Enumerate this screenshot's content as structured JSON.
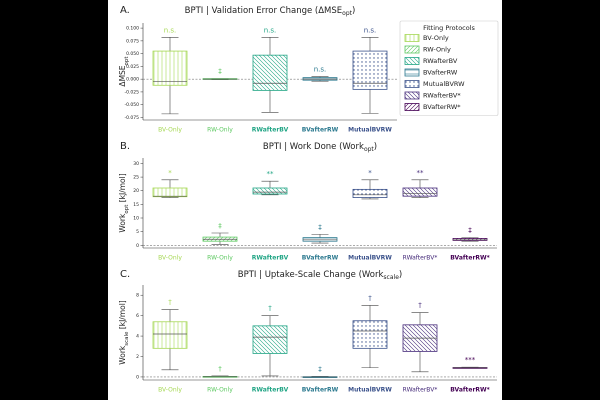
{
  "chart_data": [
    {
      "type": "box",
      "panel_label": "A.",
      "title": [
        "BPTI | Validation Error Change (ΔMSE",
        "opt",
        ")"
      ],
      "ylabel": [
        "ΔMSE",
        "opt"
      ],
      "categories": [
        "BV-Only",
        "RW-Only",
        "RWafterBV",
        "BVafterRW",
        "MutualBVRW"
      ],
      "colors": [
        "#a6d854",
        "#5ec962",
        "#21a585",
        "#2a788e",
        "#3b528b"
      ],
      "hatches": [
        "|",
        "/",
        "\\",
        "-",
        "o"
      ],
      "bold_labels": [
        false,
        false,
        true,
        true,
        true
      ],
      "annotations": [
        "n.s.",
        "‡",
        "n.s.",
        "n.s.",
        "n.s."
      ],
      "boxes": [
        {
          "low": -0.068,
          "q1": -0.012,
          "median": -0.005,
          "q3": 0.055,
          "high": 0.082
        },
        {
          "low": -0.001,
          "q1": 0,
          "median": 0,
          "q3": 0.001,
          "high": 0.001
        },
        {
          "low": -0.065,
          "q1": -0.022,
          "median": -0.008,
          "q3": 0.047,
          "high": 0.082
        },
        {
          "low": -0.004,
          "q1": -0.002,
          "median": 0,
          "q3": 0.003,
          "high": 0.005
        },
        {
          "low": -0.067,
          "q1": -0.02,
          "median": -0.008,
          "q3": 0.055,
          "high": 0.082
        }
      ],
      "hline": 0,
      "ylim": [
        -0.08,
        0.11
      ],
      "yticks": [
        -0.075,
        {
          "value": -0.05,
          "label": "-0.050"
        },
        -0.025,
        {
          "value": 0,
          "label": "0.000"
        },
        0.025,
        {
          "value": 0.05,
          "label": "0.050"
        },
        0.075,
        {
          "value": 0.1,
          "label": "0.100"
        }
      ],
      "legend": {
        "title": "Fitting Protocols",
        "position": "upper right",
        "names": [
          "BV-Only",
          "RW-Only",
          "RWafterBV",
          "BVafterRW",
          "MutualBVRW",
          "RWafterBV*",
          "BVafterRW*"
        ],
        "colors": [
          "#a6d854",
          "#5ec962",
          "#21a585",
          "#2a788e",
          "#3b528b",
          "#472d7b",
          "#440154"
        ],
        "hatches": [
          "|",
          "/",
          "\\",
          "-",
          "o",
          "\\",
          "/"
        ]
      }
    },
    {
      "type": "box",
      "panel_label": "B.",
      "title": [
        "BPTI | Work Done (Work",
        "opt",
        ")"
      ],
      "ylabel": [
        "Work",
        "opt",
        " [kJ/mol]"
      ],
      "categories": [
        "BV-Only",
        "RW-Only",
        "RWafterBV",
        "BVafterRW",
        "MutualBVRW",
        "RWafterBV*",
        "BVafterRW*"
      ],
      "colors": [
        "#a6d854",
        "#5ec962",
        "#21a585",
        "#2a788e",
        "#3b528b",
        "#472d7b",
        "#440154"
      ],
      "hatches": [
        "|",
        "/",
        "\\",
        "-",
        "o",
        "\\",
        "/"
      ],
      "bold_labels": [
        false,
        false,
        true,
        true,
        true,
        false,
        true
      ],
      "annotations": [
        "*",
        "‡",
        "**",
        "‡",
        "*",
        "**",
        "‡"
      ],
      "boxes": [
        {
          "low": 17.5,
          "q1": 17.8,
          "median": 18,
          "q3": 21,
          "high": 24
        },
        {
          "low": 0.3,
          "q1": 1.5,
          "median": 2.2,
          "q3": 3,
          "high": 4.5
        },
        {
          "low": 18.5,
          "q1": 18.8,
          "median": 19.5,
          "q3": 21,
          "high": 23.5
        },
        {
          "low": 0.8,
          "q1": 1.5,
          "median": 2,
          "q3": 2.8,
          "high": 4
        },
        {
          "low": 17,
          "q1": 17.5,
          "median": 18.5,
          "q3": 20.5,
          "high": 24
        },
        {
          "low": 17.5,
          "q1": 18,
          "median": 19,
          "q3": 21,
          "high": 24
        },
        {
          "low": 1.5,
          "q1": 1.8,
          "median": 2,
          "q3": 2.5,
          "high": 2.8
        }
      ],
      "hline": 0,
      "ylim": [
        -1,
        32
      ],
      "yticks": [
        0,
        5,
        10,
        15,
        20,
        25,
        30
      ]
    },
    {
      "type": "box",
      "panel_label": "C.",
      "title": [
        "BPTI | Uptake-Scale Change (Work",
        "scale",
        ")"
      ],
      "ylabel": [
        "Work",
        "scale",
        " [kJ/mol]"
      ],
      "categories": [
        "BV-Only",
        "RW-Only",
        "RWafterBV",
        "BVafterRW",
        "MutualBVRW",
        "RWafterBV*",
        "BVafterRW*"
      ],
      "colors": [
        "#a6d854",
        "#5ec962",
        "#21a585",
        "#2a788e",
        "#3b528b",
        "#472d7b",
        "#440154"
      ],
      "hatches": [
        "|",
        "/",
        "\\",
        "-",
        "o",
        "\\",
        "/"
      ],
      "bold_labels": [
        false,
        false,
        true,
        true,
        true,
        false,
        true
      ],
      "annotations": [
        "†",
        "†",
        "†",
        "‡",
        "†",
        "†",
        "***"
      ],
      "boxes": [
        {
          "low": 0.7,
          "q1": 2.8,
          "median": 4.2,
          "q3": 5.4,
          "high": 6.6
        },
        {
          "low": 0,
          "q1": 0,
          "median": 0.02,
          "q3": 0.05,
          "high": 0.1
        },
        {
          "low": 0.1,
          "q1": 2.3,
          "median": 3.9,
          "q3": 5,
          "high": 6
        },
        {
          "low": 0,
          "q1": 0,
          "median": 0,
          "q3": 0.02,
          "high": 0.05
        },
        {
          "low": 0.9,
          "q1": 2.8,
          "median": 4.5,
          "q3": 5.5,
          "high": 7
        },
        {
          "low": 0.5,
          "q1": 2.5,
          "median": 3.8,
          "q3": 5.1,
          "high": 6.3
        },
        {
          "low": 0.85,
          "q1": 0.88,
          "median": 0.9,
          "q3": 0.92,
          "high": 0.95
        }
      ],
      "hline": 0,
      "ylim": [
        -0.3,
        9
      ],
      "yticks": [
        0,
        2,
        4,
        6,
        8
      ]
    }
  ]
}
